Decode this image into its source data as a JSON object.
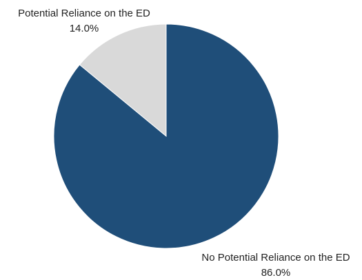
{
  "chart_data": {
    "type": "pie",
    "slices": [
      {
        "label": "Potential Reliance on the ED",
        "value": 14.0,
        "value_label": "14.0%",
        "color": "#d9d9d9"
      },
      {
        "label": "No Potential Reliance on the ED",
        "value": 86.0,
        "value_label": "86.0%",
        "color": "#1f4e79"
      }
    ],
    "start_angle_deg": 0,
    "direction": "counterclockwise",
    "legend": "none"
  }
}
